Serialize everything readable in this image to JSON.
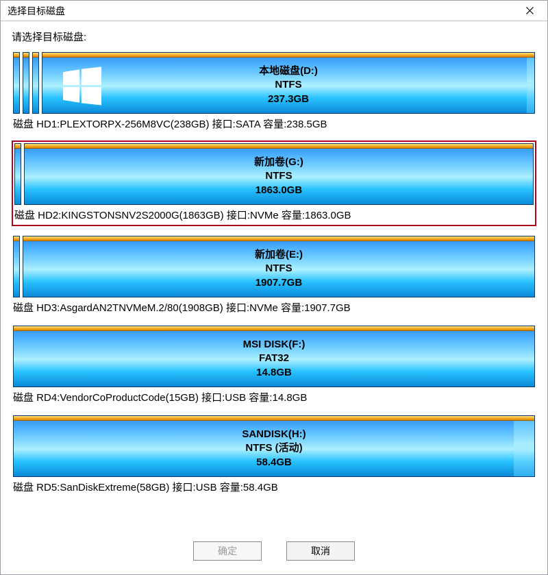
{
  "window": {
    "title": "选择目标磁盘"
  },
  "prompt": "请选择目标磁盘:",
  "selected_index": 1,
  "colors": {
    "selection_border": "#b00020",
    "partition_border": "#0b3a6a",
    "topbar_gradient": [
      "#ffe27a",
      "#f5a623",
      "#d98800"
    ],
    "partition_gradient": [
      "#2a8be9",
      "#4fb3ff",
      "#7ed6ff",
      "#aef0ff",
      "#29c2ff",
      "#0a8ad8"
    ]
  },
  "disks": [
    {
      "caption": "磁盘 HD1:PLEXTORPX-256M8VC(238GB)  接口:SATA  容量:238.5GB",
      "partitions": [
        {
          "thin": true
        },
        {
          "thin": true
        },
        {
          "thin": true
        },
        {
          "name": "本地磁盘(D:)",
          "fs": "NTFS",
          "size": "237.3GB",
          "has_win_icon": true,
          "free_bar_pct": 1.5
        }
      ]
    },
    {
      "caption": "磁盘 HD2:KINGSTONSNV2S2000G(1863GB)  接口:NVMe  容量:1863.0GB",
      "partitions": [
        {
          "thin": true
        },
        {
          "name": "新加卷(G:)",
          "fs": "NTFS",
          "size": "1863.0GB",
          "free_bar_pct": 0
        }
      ]
    },
    {
      "caption": "磁盘 HD3:AsgardAN2TNVMeM.2/80(1908GB)  接口:NVMe  容量:1907.7GB",
      "partitions": [
        {
          "thin": true
        },
        {
          "name": "新加卷(E:)",
          "fs": "NTFS",
          "size": "1907.7GB",
          "free_bar_pct": 0
        }
      ]
    },
    {
      "caption": "磁盘 RD4:VendorCoProductCode(15GB)  接口:USB  容量:14.8GB",
      "partitions": [
        {
          "name": "MSI DISK(F:)",
          "fs": "FAT32",
          "size": "14.8GB",
          "free_bar_pct": 0
        }
      ]
    },
    {
      "caption": "磁盘 RD5:SanDiskExtreme(58GB)  接口:USB  容量:58.4GB",
      "partitions": [
        {
          "name": "SANDISK(H:)",
          "fs": "NTFS (活动)",
          "size": "58.4GB",
          "free_bar_pct": 4
        }
      ]
    }
  ],
  "buttons": {
    "ok": "确定",
    "cancel": "取消",
    "ok_disabled": true
  }
}
